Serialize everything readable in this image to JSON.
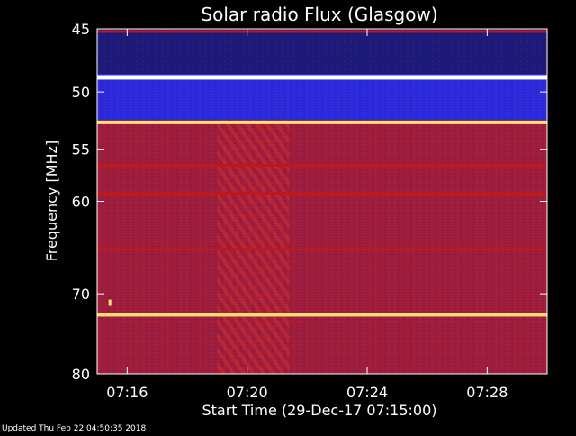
{
  "chart_data": {
    "type": "heatmap",
    "title": "Solar radio Flux (Glasgow)",
    "xlabel": "Start Time (29-Dec-17 07:15:00)",
    "ylabel": "Frequency [MHz]",
    "x_ticks": [
      "07:16",
      "07:20",
      "07:24",
      "07:28"
    ],
    "x_tick_minutes": [
      1,
      5,
      9,
      13
    ],
    "xlim_minutes": [
      0,
      15
    ],
    "y_ticks": [
      45,
      50,
      55,
      60,
      70,
      80
    ],
    "ylim_mhz": [
      45,
      80
    ],
    "y_scale": "log",
    "colormap": "black-blue-red-yellow-white",
    "colors": {
      "background": "#000000",
      "low": "#1a1a7a",
      "mid": "#c01818",
      "high": "#ffe070",
      "peak": "#ffffff",
      "axes": "#ffffff"
    },
    "features": [
      {
        "kind": "band",
        "freq_mhz": [
          45,
          48.5
        ],
        "level": "low"
      },
      {
        "kind": "band",
        "freq_mhz": [
          48.5,
          52.4
        ],
        "level": "blue"
      },
      {
        "kind": "band",
        "freq_mhz": [
          52.4,
          80
        ],
        "level": "red-purple"
      },
      {
        "kind": "line",
        "freq_mhz": 45.2,
        "level": "mid"
      },
      {
        "kind": "line",
        "freq_mhz": 48.8,
        "level": "peak"
      },
      {
        "kind": "line",
        "freq_mhz": 52.6,
        "level": "high"
      },
      {
        "kind": "line",
        "freq_mhz": 72.5,
        "level": "high"
      },
      {
        "kind": "line",
        "freq_mhz": 65.0,
        "level": "mid"
      },
      {
        "kind": "line",
        "freq_mhz": 56.5,
        "level": "mid"
      },
      {
        "kind": "line",
        "freq_mhz": 59.2,
        "level": "mid"
      },
      {
        "kind": "burst",
        "time_minutes": [
          4.0,
          6.4
        ],
        "freq_mhz": [
          52.4,
          80
        ],
        "level": "mid"
      },
      {
        "kind": "spot",
        "time_minutes": 0.2,
        "freq_mhz": 71.0,
        "level": "high"
      }
    ]
  },
  "footer": {
    "updated": "Updated Thu Feb 22 04:50:35 2018"
  }
}
